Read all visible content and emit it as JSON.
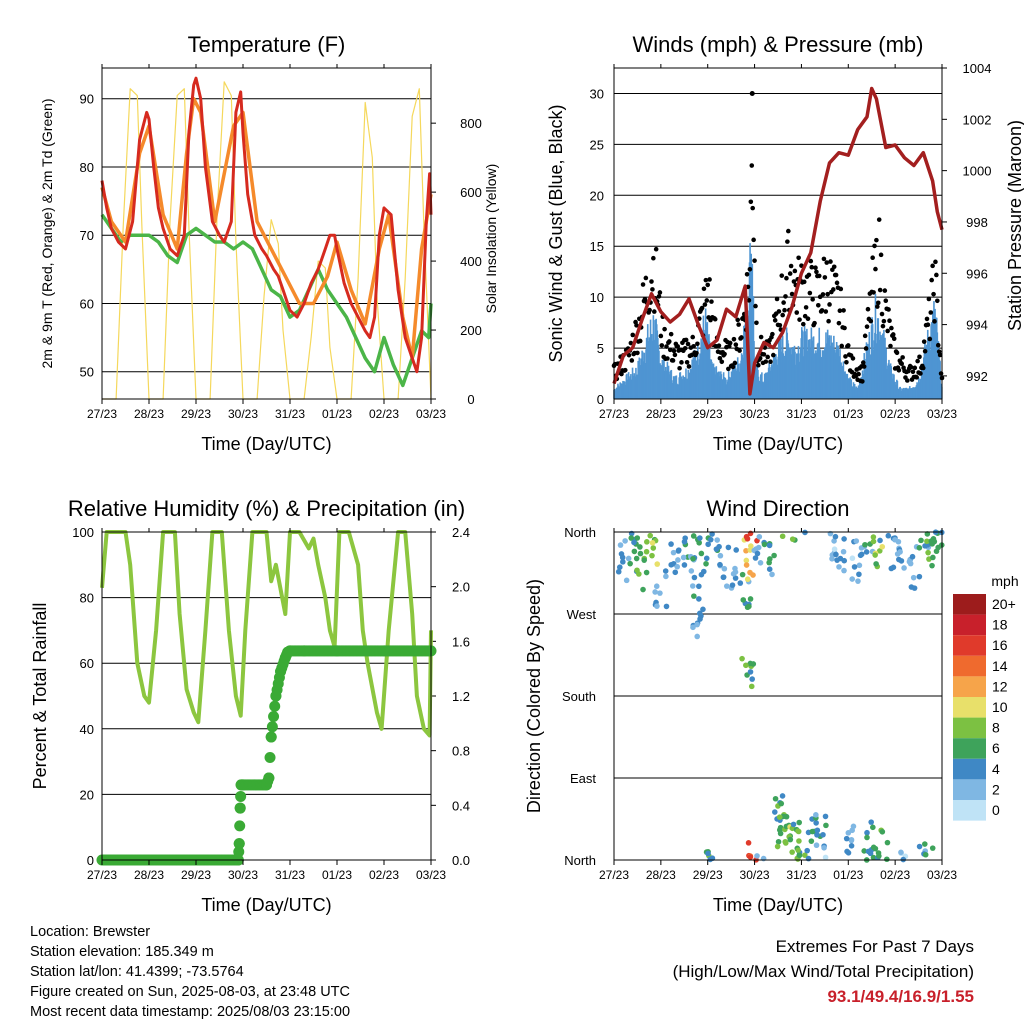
{
  "chart_data": [
    {
      "type": "line",
      "title": "Temperature (F)",
      "xlabel": "Time (Day/UTC)",
      "ylabel": "2m & 9m T (Red, Orange) & 2m Td (Green)",
      "y2label": "Solar Insolation (Yellow)",
      "x_ticks": [
        "27/23",
        "28/23",
        "29/23",
        "30/23",
        "31/23",
        "01/23",
        "02/23",
        "03/23"
      ],
      "y_ticks": [
        50,
        60,
        70,
        80,
        90
      ],
      "y2_ticks": [
        0,
        200,
        400,
        600,
        800
      ],
      "ylim": [
        46,
        94.5
      ],
      "y2lim": [
        0,
        960
      ],
      "colors": {
        "t2m": "#d62a1f",
        "t9m": "#f58a2b",
        "td": "#4bb548",
        "solar": "#f5d85c"
      },
      "series": [
        {
          "name": "2m T",
          "color": "#d62a1f",
          "x": [
            0,
            0.1,
            0.2,
            0.35,
            0.5,
            0.65,
            0.8,
            0.95,
            1.0,
            1.1,
            1.2,
            1.3,
            1.45,
            1.6,
            1.75,
            1.85,
            1.95,
            2.0,
            2.1,
            2.2,
            2.35,
            2.5,
            2.6,
            2.75,
            2.85,
            2.95,
            3.0,
            3.1,
            3.25,
            3.4,
            3.5,
            3.65,
            3.75,
            3.85,
            3.95,
            4.0,
            4.15,
            4.3,
            4.45,
            4.6,
            4.75,
            4.85,
            4.95,
            5.0,
            5.15,
            5.3,
            5.45,
            5.6,
            5.7,
            5.8,
            5.9,
            6.0,
            6.15,
            6.3,
            6.45,
            6.6,
            6.7,
            6.8,
            6.9,
            6.97,
            7.0
          ],
          "values": [
            78,
            74,
            71,
            69,
            68,
            72,
            84,
            88,
            87,
            80,
            74,
            71,
            68,
            67,
            70,
            85,
            92,
            93,
            90,
            80,
            72,
            70,
            69,
            72,
            88,
            91,
            85,
            76,
            70,
            68,
            67,
            65,
            64,
            62,
            60,
            59,
            58,
            60,
            63,
            65,
            68,
            70,
            70,
            68,
            63,
            60,
            58,
            56,
            55,
            58,
            70,
            74,
            73,
            62,
            55,
            52,
            50,
            55,
            72,
            79,
            73
          ]
        },
        {
          "name": "9m T",
          "color": "#f58a2b",
          "x": [
            0,
            0.2,
            0.5,
            0.8,
            1.0,
            1.3,
            1.6,
            1.8,
            1.95,
            2.1,
            2.4,
            2.8,
            3.0,
            3.3,
            3.6,
            3.9,
            4.2,
            4.5,
            4.8,
            5.0,
            5.3,
            5.6,
            5.9,
            6.1,
            6.4,
            6.6,
            6.8,
            7.0
          ],
          "values": [
            77,
            72,
            69,
            82,
            86,
            73,
            68,
            82,
            90,
            88,
            72,
            86,
            88,
            72,
            68,
            64,
            60,
            60,
            64,
            69,
            62,
            57,
            68,
            73,
            58,
            52,
            68,
            76
          ]
        },
        {
          "name": "2m Td",
          "color": "#4bb548",
          "x": [
            0,
            0.2,
            0.4,
            0.6,
            0.8,
            1.0,
            1.2,
            1.4,
            1.6,
            1.8,
            2.0,
            2.2,
            2.4,
            2.6,
            2.8,
            3.0,
            3.2,
            3.4,
            3.6,
            3.8,
            4.0,
            4.2,
            4.4,
            4.6,
            4.8,
            5.0,
            5.2,
            5.4,
            5.6,
            5.8,
            6.0,
            6.2,
            6.4,
            6.6,
            6.8,
            6.95,
            7.0
          ],
          "values": [
            73,
            71,
            69,
            70,
            70,
            70,
            69,
            67,
            66,
            70,
            71,
            70,
            69,
            69,
            68,
            69,
            68,
            65,
            62,
            61,
            58,
            59,
            62,
            65,
            62,
            60,
            58,
            55,
            52,
            50,
            55,
            51,
            48,
            52,
            56,
            55,
            60
          ]
        },
        {
          "name": "Solar",
          "color": "#f5d85c",
          "x": [
            0,
            0.3,
            0.45,
            0.6,
            0.75,
            0.85,
            1.0,
            1.3,
            1.45,
            1.6,
            1.75,
            1.85,
            2.0,
            2.3,
            2.45,
            2.6,
            2.75,
            2.85,
            3.0,
            3.3,
            3.45,
            3.6,
            3.75,
            3.85,
            4.0,
            4.3,
            4.45,
            4.6,
            4.75,
            4.85,
            5.0,
            5.3,
            5.45,
            5.6,
            5.75,
            5.85,
            6.0,
            6.3,
            6.45,
            6.6,
            6.75,
            6.85,
            7.0
          ],
          "values": [
            0,
            0,
            500,
            900,
            880,
            500,
            0,
            0,
            520,
            880,
            900,
            500,
            0,
            0,
            540,
            920,
            880,
            460,
            0,
            0,
            300,
            520,
            450,
            200,
            0,
            0,
            180,
            400,
            380,
            150,
            0,
            0,
            350,
            860,
            700,
            300,
            0,
            0,
            350,
            820,
            900,
            500,
            0
          ]
        }
      ]
    },
    {
      "type": "scatter",
      "title": "Winds (mph) & Pressure (mb)",
      "xlabel": "Time (Day/UTC)",
      "ylabel": "Sonic Wind & Gust (Blue, Black)",
      "y2label": "Station Pressure (Maroon)",
      "x_ticks": [
        "27/23",
        "28/23",
        "29/23",
        "30/23",
        "31/23",
        "01/23",
        "02/23",
        "03/23"
      ],
      "y_ticks": [
        0,
        5,
        10,
        15,
        20,
        25,
        30
      ],
      "y2_ticks": [
        992,
        994,
        996,
        998,
        1000,
        1002,
        1004
      ],
      "ylim": [
        0,
        32.5
      ],
      "y2lim": [
        991.1,
        1004
      ],
      "colors": {
        "wind": "#4f95d2",
        "gust": "#000000",
        "pressure": "#a31f1f"
      },
      "series": [
        {
          "name": "Wind",
          "color": "#4f95d2",
          "x": [
            0,
            0.25,
            0.5,
            0.7,
            0.85,
            1.0,
            1.3,
            1.6,
            1.8,
            1.95,
            2.1,
            2.4,
            2.7,
            2.85,
            2.95,
            3.0,
            3.2,
            3.5,
            3.7,
            3.9,
            4.0,
            4.3,
            4.6,
            4.8,
            5.0,
            5.2,
            5.45,
            5.6,
            5.75,
            5.9,
            6.1,
            6.3,
            6.5,
            6.7,
            6.85,
            7.0
          ],
          "values": [
            1,
            2,
            3,
            6,
            8,
            4,
            2,
            3,
            5,
            8,
            3,
            2,
            4,
            10,
            17,
            3,
            2,
            5,
            6,
            5,
            6,
            6,
            6,
            5,
            2,
            1,
            6,
            9,
            6,
            3,
            1,
            1,
            2,
            6,
            9,
            1
          ]
        },
        {
          "name": "Gust",
          "color": "#000000",
          "x": [
            0,
            0.3,
            0.55,
            0.75,
            0.85,
            1.05,
            1.4,
            1.7,
            1.9,
            2.0,
            2.2,
            2.5,
            2.75,
            2.9,
            2.95,
            3.05,
            3.3,
            3.55,
            3.75,
            3.9,
            4.1,
            4.35,
            4.55,
            4.8,
            5.05,
            5.3,
            5.5,
            5.65,
            5.8,
            6.0,
            6.3,
            6.55,
            6.75,
            6.85,
            7.0
          ],
          "values": [
            3,
            5,
            9,
            14,
            16,
            7,
            5,
            6,
            10,
            13,
            6,
            5,
            9,
            15,
            30,
            6,
            5,
            11,
            16,
            13,
            13,
            12,
            14,
            11,
            4,
            3,
            12,
            17,
            10,
            5,
            3,
            4,
            10,
            14,
            2
          ]
        },
        {
          "name": "Pressure",
          "color": "#a31f1f",
          "x": [
            0,
            0.2,
            0.4,
            0.6,
            0.8,
            1.0,
            1.2,
            1.4,
            1.6,
            1.8,
            2.0,
            2.2,
            2.4,
            2.6,
            2.8,
            2.9,
            3.0,
            3.2,
            3.4,
            3.6,
            3.8,
            4.0,
            4.2,
            4.4,
            4.6,
            4.8,
            5.0,
            5.2,
            5.4,
            5.5,
            5.6,
            5.8,
            6.0,
            6.2,
            6.4,
            6.6,
            6.8,
            6.9,
            7.0
          ],
          "values": [
            991.7,
            992.8,
            993.1,
            994.2,
            995.2,
            994.5,
            994.1,
            994.4,
            995.0,
            994.0,
            993.1,
            993.4,
            994.6,
            994.3,
            995.5,
            991.3,
            992.5,
            993.3,
            993.1,
            993.7,
            994.7,
            996.0,
            996.8,
            998.8,
            1000.3,
            1000.7,
            1000.6,
            1001.6,
            1002.1,
            1003.2,
            1002.8,
            1000.9,
            1001.0,
            1000.5,
            1000.2,
            1000.7,
            999.6,
            998.4,
            997.7
          ]
        }
      ]
    },
    {
      "type": "line",
      "title": "Relative Humidity (%) & Precipitation (in)",
      "xlabel": "Time (Day/UTC)",
      "ylabel": "Percent & Total Rainfall",
      "x_ticks": [
        "27/23",
        "28/23",
        "29/23",
        "30/23",
        "31/23",
        "01/23",
        "02/23",
        "03/23"
      ],
      "y_ticks": [
        0,
        20,
        40,
        60,
        80,
        100
      ],
      "y2_ticks": [
        0.0,
        0.4,
        0.8,
        1.2,
        1.6,
        2.0,
        2.4
      ],
      "ylim": [
        0,
        100
      ],
      "y2lim": [
        0,
        2.4
      ],
      "colors": {
        "rh": "#8cc63f",
        "precip": "#3aaa35"
      },
      "series": [
        {
          "name": "RH",
          "color": "#8cc63f",
          "x": [
            0,
            0.1,
            0.25,
            0.5,
            0.6,
            0.75,
            0.9,
            1.0,
            1.15,
            1.3,
            1.55,
            1.65,
            1.8,
            1.95,
            2.05,
            2.2,
            2.35,
            2.55,
            2.7,
            2.85,
            2.95,
            3.05,
            3.2,
            3.5,
            3.6,
            3.7,
            3.9,
            4.0,
            4.2,
            4.4,
            4.5,
            4.6,
            4.75,
            4.85,
            4.95,
            5.05,
            5.15,
            5.25,
            5.45,
            5.55,
            5.65,
            5.85,
            5.95,
            6.1,
            6.3,
            6.45,
            6.6,
            6.7,
            6.85,
            6.97,
            7.0
          ],
          "values": [
            83,
            100,
            100,
            100,
            90,
            60,
            50,
            48,
            70,
            100,
            100,
            75,
            52,
            45,
            42,
            70,
            100,
            100,
            70,
            50,
            44,
            70,
            100,
            100,
            85,
            90,
            75,
            100,
            100,
            95,
            98,
            90,
            80,
            70,
            65,
            100,
            100,
            100,
            90,
            70,
            60,
            45,
            40,
            70,
            100,
            100,
            75,
            50,
            40,
            38,
            70
          ]
        },
        {
          "name": "Precip",
          "color": "#3aaa35",
          "x": [
            0,
            2.9,
            2.92,
            2.94,
            2.96,
            3.0,
            3.5,
            3.55,
            3.6,
            3.7,
            3.8,
            3.9,
            3.95,
            4.0,
            4.3,
            5.0,
            6.0,
            7.0
          ],
          "values": [
            0,
            0,
            0.12,
            0.38,
            0.55,
            0.55,
            0.55,
            0.6,
            0.9,
            1.2,
            1.38,
            1.48,
            1.52,
            1.53,
            1.53,
            1.53,
            1.53,
            1.53
          ]
        }
      ]
    },
    {
      "type": "scatter",
      "title": "Wind Direction",
      "xlabel": "Time (Day/UTC)",
      "ylabel": "Direction (Colored By Speed)",
      "x_ticks": [
        "27/23",
        "28/23",
        "29/23",
        "30/23",
        "31/23",
        "01/23",
        "02/23",
        "03/23"
      ],
      "y_ticks": [
        "North",
        "East",
        "South",
        "West",
        "North"
      ],
      "ylim": [
        0,
        360
      ],
      "legend": {
        "title": "mph",
        "labels": [
          "20+",
          "18",
          "16",
          "14",
          "12",
          "10",
          "8",
          "6",
          "4",
          "2",
          "0"
        ],
        "colors": [
          "#9d1c1c",
          "#c8202b",
          "#e03a2b",
          "#ef6a2e",
          "#f6a44a",
          "#e8e06a",
          "#7cc142",
          "#3ea35b",
          "#3f88c5",
          "#7fb7e3",
          "#bfe3f6"
        ]
      },
      "points": [
        [
          0.2,
          330,
          3
        ],
        [
          0.4,
          340,
          5
        ],
        [
          0.6,
          320,
          7
        ],
        [
          0.8,
          345,
          8
        ],
        [
          1.0,
          300,
          2
        ],
        [
          1.3,
          330,
          3
        ],
        [
          1.6,
          345,
          4
        ],
        [
          1.75,
          310,
          4
        ],
        [
          1.8,
          270,
          3
        ],
        [
          1.9,
          340,
          6
        ],
        [
          2.1,
          355,
          5
        ],
        [
          2.3,
          335,
          2
        ],
        [
          2.5,
          320,
          3
        ],
        [
          2.8,
          300,
          4
        ],
        [
          2.85,
          200,
          6
        ],
        [
          2.9,
          330,
          11
        ],
        [
          2.95,
          355,
          15
        ],
        [
          3.1,
          340,
          3
        ],
        [
          3.3,
          330,
          4
        ],
        [
          3.5,
          50,
          6
        ],
        [
          3.6,
          30,
          7
        ],
        [
          3.7,
          20,
          8
        ],
        [
          3.85,
          15,
          6
        ],
        [
          4.0,
          25,
          7
        ],
        [
          4.2,
          20,
          5
        ],
        [
          4.4,
          30,
          4
        ],
        [
          4.6,
          355,
          2
        ],
        [
          4.8,
          340,
          3
        ],
        [
          5.0,
          20,
          3
        ],
        [
          5.2,
          330,
          2
        ],
        [
          5.4,
          350,
          4
        ],
        [
          5.5,
          25,
          5
        ],
        [
          5.6,
          340,
          8
        ],
        [
          5.75,
          10,
          6
        ],
        [
          6.0,
          330,
          3
        ],
        [
          6.2,
          345,
          2
        ],
        [
          6.4,
          320,
          3
        ],
        [
          6.6,
          355,
          4
        ],
        [
          6.75,
          350,
          7
        ],
        [
          6.9,
          340,
          5
        ]
      ]
    }
  ],
  "footer": {
    "location": "Location: Brewster",
    "elevation": "Station elevation: 185.349 m",
    "latlon": "Station lat/lon: 41.4399; -73.5764",
    "created": "Figure created on Sun, 2025-08-03, at 23:48 UTC",
    "recent": "Most recent data timestamp: 2025/08/03 23:15:00",
    "extremes_title": "Extremes For Past 7 Days",
    "extremes_subtitle": "(High/Low/Max Wind/Total Precipitation)",
    "extremes_values": "93.1/49.4/16.9/1.55"
  }
}
